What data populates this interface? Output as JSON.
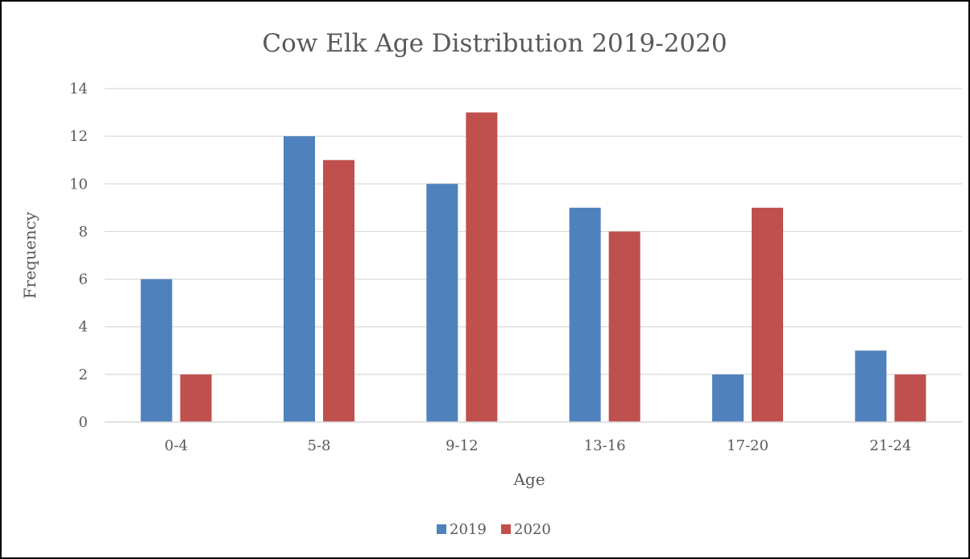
{
  "chart_data": {
    "type": "bar",
    "title": "Cow Elk Age Distribution 2019-2020",
    "xlabel": "Age",
    "ylabel": "Frequency",
    "categories": [
      "0-4",
      "5-8",
      "9-12",
      "13-16",
      "17-20",
      "21-24"
    ],
    "series": [
      {
        "name": "2019",
        "color": "#4f81bd",
        "values": [
          6,
          12,
          10,
          9,
          2,
          3
        ]
      },
      {
        "name": "2020",
        "color": "#c0504d",
        "values": [
          2,
          11,
          13,
          8,
          9,
          2
        ]
      }
    ],
    "ylim": [
      0,
      14
    ],
    "yticks": [
      0,
      2,
      4,
      6,
      8,
      10,
      12,
      14
    ],
    "grid": true,
    "legend_position": "bottom"
  }
}
